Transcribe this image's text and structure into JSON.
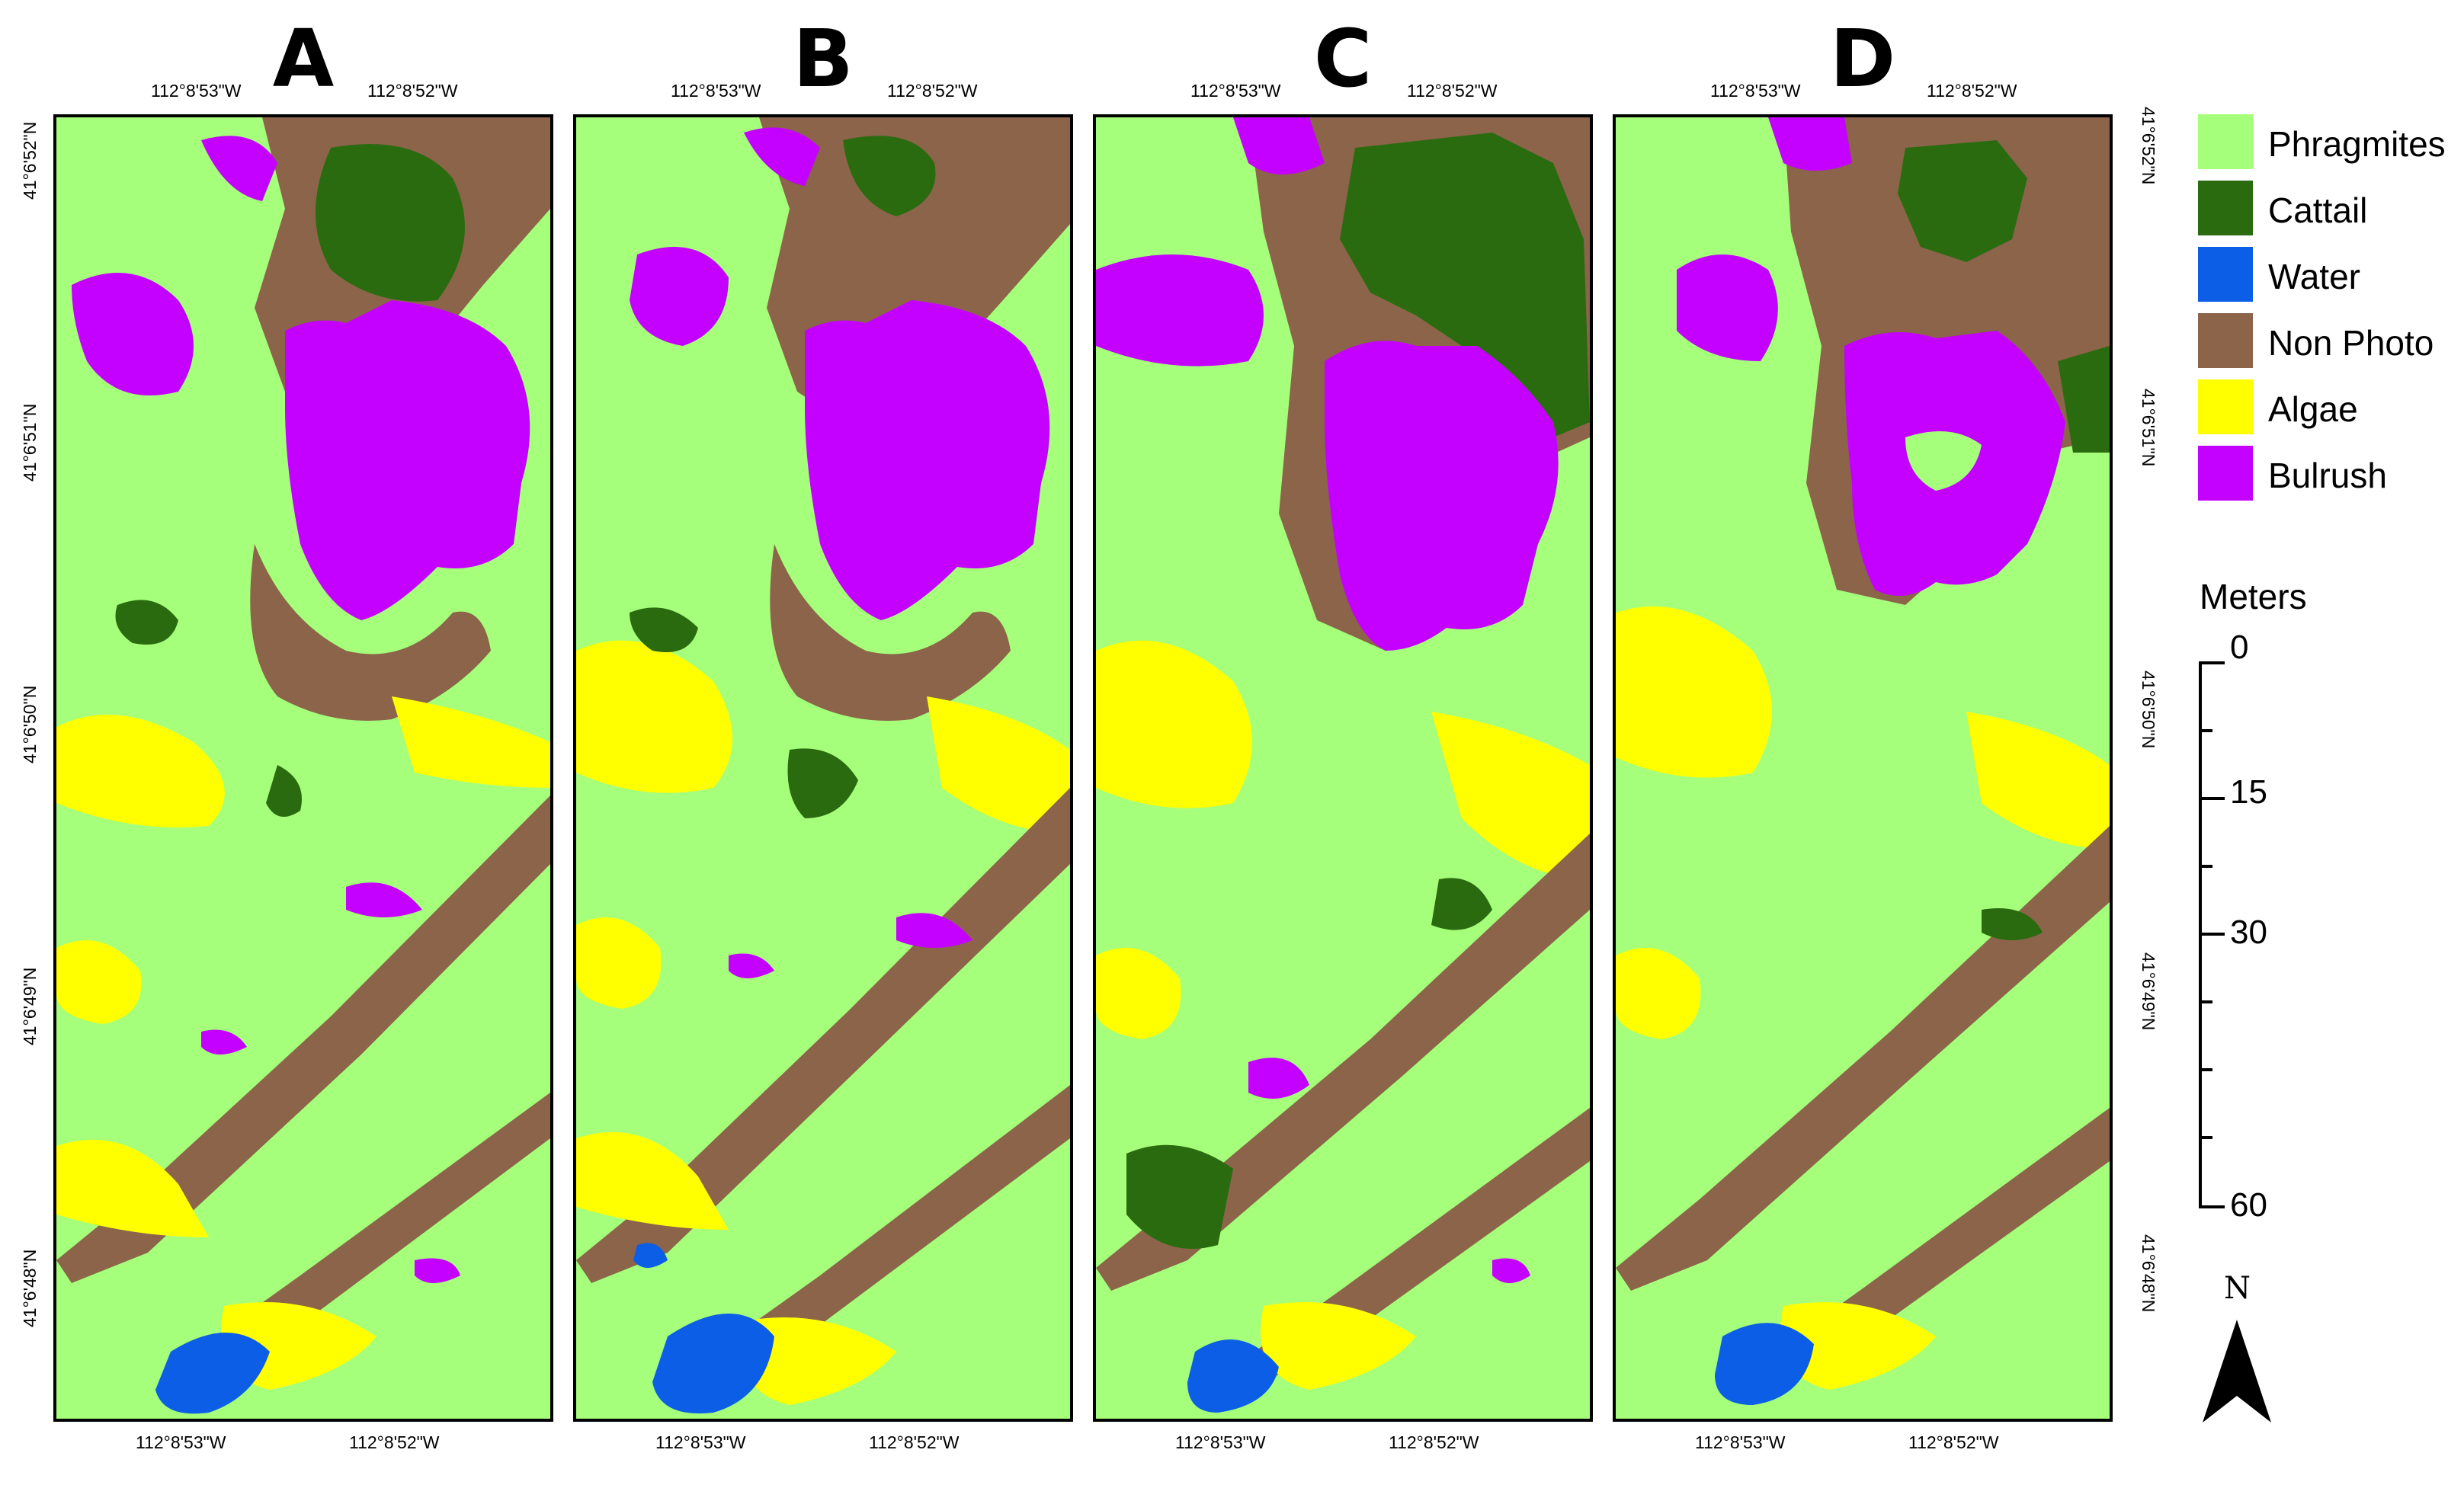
{
  "panels": [
    {
      "letter": "A",
      "lon_top": [
        "112°8'53\"W",
        "112°8'52\"W"
      ],
      "lon_bottom": [
        "112°8'53\"W",
        "112°8'52\"W"
      ]
    },
    {
      "letter": "B",
      "lon_top": [
        "112°8'53\"W",
        "112°8'52\"W"
      ],
      "lon_bottom": [
        "112°8'53\"W",
        "112°8'52\"W"
      ]
    },
    {
      "letter": "C",
      "lon_top": [
        "112°8'53\"W",
        "112°8'52\"W"
      ],
      "lon_bottom": [
        "112°8'53\"W",
        "112°8'52\"W"
      ]
    },
    {
      "letter": "D",
      "lon_top": [
        "112°8'53\"W",
        "112°8'52\"W"
      ],
      "lon_bottom": [
        "112°8'53\"W",
        "112°8'52\"W"
      ]
    }
  ],
  "latitudes": [
    "41°6'52\"N",
    "41°6'51\"N",
    "41°6'50\"N",
    "41°6'49\"N",
    "41°6'48\"N"
  ],
  "legend": [
    {
      "label": "Phragmites",
      "color": "#a5ff7a"
    },
    {
      "label": "Cattail",
      "color": "#2a6b0f"
    },
    {
      "label": "Water",
      "color": "#0c5ee6"
    },
    {
      "label": "Non Photo",
      "color": "#8b644a"
    },
    {
      "label": "Algae",
      "color": "#ffff00"
    },
    {
      "label": "Bulrush",
      "color": "#c400ff"
    }
  ],
  "scale": {
    "title": "Meters",
    "labels": [
      "0",
      "15",
      "30",
      "60"
    ]
  },
  "north_label": "N"
}
